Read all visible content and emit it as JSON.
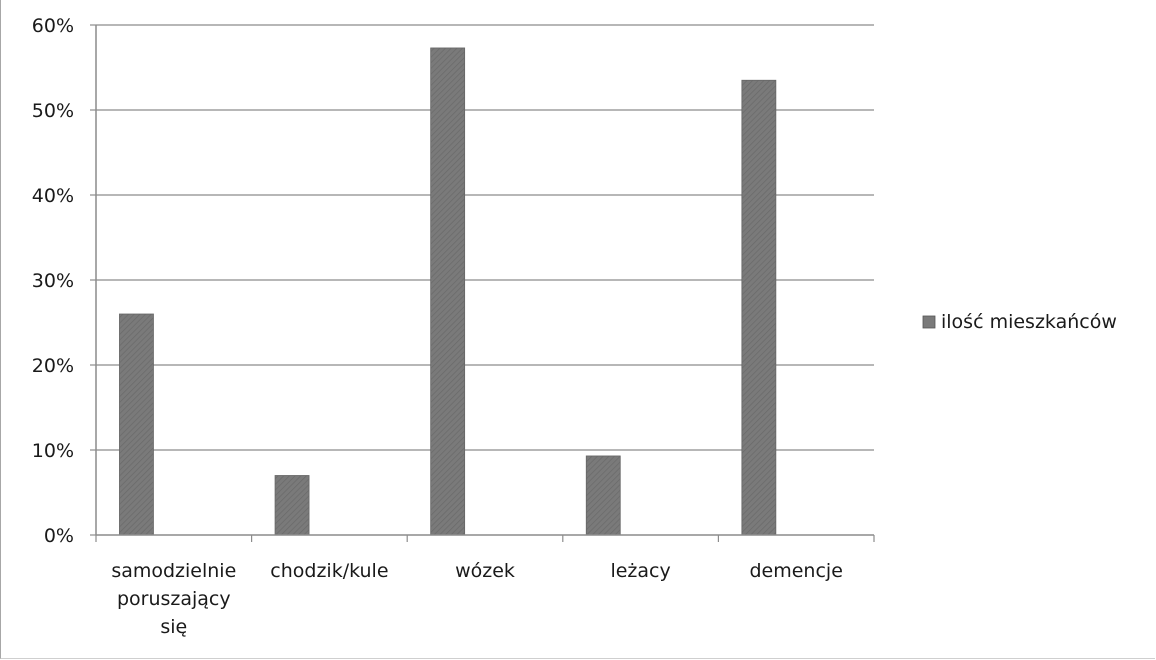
{
  "chart_data": {
    "type": "bar",
    "categories": [
      [
        "samodzielnie",
        "poruszający",
        "się"
      ],
      [
        "chodzik/kule"
      ],
      [
        "wózek"
      ],
      [
        "leżacy"
      ],
      [
        "demencje"
      ]
    ],
    "series": [
      {
        "name": "ilość mieszkańców",
        "values": [
          26,
          7,
          57.3,
          9.3,
          53.5
        ],
        "color": "#7a7a7a"
      }
    ],
    "y_tick_labels": [
      "0%",
      "10%",
      "20%",
      "30%",
      "40%",
      "50%",
      "60%"
    ],
    "y_ticks": [
      0,
      10,
      20,
      30,
      40,
      50,
      60
    ],
    "ylim": [
      0,
      60
    ],
    "grid": true,
    "legend_position": "right",
    "gridline_color": "#8c8c8c",
    "axis_color": "#8c8c8c"
  }
}
